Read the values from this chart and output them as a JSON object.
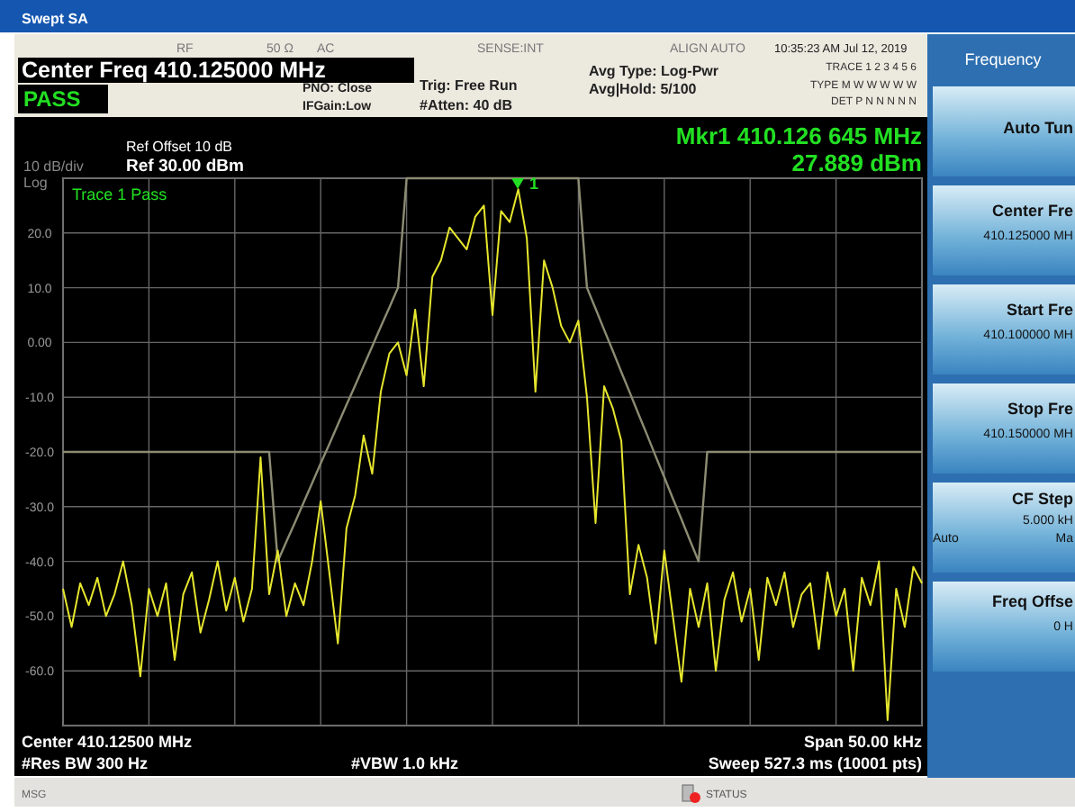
{
  "chart_data": {
    "type": "line",
    "title": "Swept SA",
    "categories": [
      null,
      null,
      null,
      null,
      null,
      null,
      null,
      null,
      null,
      null,
      null,
      null,
      null,
      null,
      null,
      null,
      null,
      null,
      null,
      null,
      null,
      null,
      null,
      null,
      null,
      null,
      null,
      null,
      null,
      null,
      null,
      null,
      null,
      null,
      null,
      null,
      null,
      null,
      null,
      null,
      null,
      null,
      null,
      null,
      null,
      null,
      null,
      null,
      null,
      null,
      null,
      null,
      null,
      null,
      null,
      null,
      null,
      null,
      null,
      null,
      null,
      null,
      null,
      null,
      null,
      null,
      null,
      null,
      null,
      null,
      null,
      null,
      null,
      null,
      null,
      null,
      null,
      null,
      null,
      null,
      null,
      null,
      null,
      null,
      null,
      null,
      null,
      null,
      null,
      null,
      null,
      null,
      null,
      null,
      null,
      null,
      null,
      null,
      null,
      null,
      null
    ],
    "series": [
      {
        "color": "#e6e62e",
        "values": [
          -45,
          -52,
          -44,
          -48,
          -43,
          -50,
          -46,
          -40,
          -48,
          -61,
          -45,
          -50,
          -44,
          -58,
          -46,
          -42,
          -53,
          -47,
          -40,
          -49,
          -43,
          -51,
          -45,
          -21,
          -46,
          -38,
          -50,
          -44,
          -48,
          -40,
          -29,
          -42,
          -55,
          -34,
          -28,
          -17,
          -24,
          -9,
          -2,
          0,
          -6,
          6,
          -8,
          12,
          15,
          21,
          19,
          17,
          23,
          25,
          5,
          24,
          22,
          28,
          19,
          -9,
          15,
          10,
          3,
          0,
          4,
          -10,
          -33,
          -8,
          -12,
          -18,
          -46,
          -37,
          -43,
          -55,
          -38,
          -50,
          -62,
          -45,
          -52,
          -44,
          -60,
          -47,
          -42,
          -51,
          -45,
          -58,
          -43,
          -48,
          -42,
          -52,
          -46,
          -44,
          -56,
          -42,
          -50,
          -45,
          -60,
          -43,
          -48,
          -40,
          -69,
          -45,
          -52,
          -41,
          -44
        ]
      },
      {
        "color": "#8c8c74",
        "values": [
          -20,
          -20,
          -20,
          -20,
          -20,
          -20,
          -20,
          -20,
          -20,
          -20,
          -20,
          -20,
          -20,
          -20,
          -20,
          -20,
          -20,
          -20,
          -20,
          -20,
          -20,
          -20,
          -20,
          -20,
          -20,
          -40,
          -36.4,
          -32.9,
          -29.3,
          -25.7,
          -22.1,
          -18.6,
          -15,
          -11.4,
          -7.9,
          -4.3,
          -0.7,
          2.9,
          6.4,
          10,
          30,
          30,
          30,
          30,
          30,
          30,
          30,
          30,
          30,
          30,
          30,
          30,
          30,
          30,
          30,
          30,
          30,
          30,
          30,
          30,
          30,
          10,
          6.2,
          2.3,
          -1.5,
          -5.4,
          -9.2,
          -13.1,
          -16.9,
          -20.8,
          -24.6,
          -28.5,
          -32.3,
          -36.2,
          -40,
          -20,
          -20,
          -20,
          -20,
          -20,
          -20,
          -20,
          -20,
          -20,
          -20,
          -20,
          -20,
          -20,
          -20,
          -20,
          -20,
          -20,
          -20,
          -20,
          -20,
          -20,
          -20,
          -20,
          -20,
          -20,
          -20
        ]
      }
    ],
    "ylim": [
      -70,
      30
    ],
    "yticks": [
      {
        "value": -70,
        "label": null
      },
      {
        "value": -60,
        "label": "-60.0"
      },
      {
        "value": -50,
        "label": "-50.0"
      },
      {
        "value": -40,
        "label": "-40.0"
      },
      {
        "value": -30,
        "label": "-30.0"
      },
      {
        "value": -20,
        "label": "-20.0"
      },
      {
        "value": -10,
        "label": "-10.0"
      },
      {
        "value": 0,
        "label": "0.00"
      },
      {
        "value": 10,
        "label": "10.0"
      },
      {
        "value": 20,
        "label": "20.0"
      },
      {
        "value": 30,
        "label": null
      }
    ],
    "grid": true,
    "tick_labels": "y",
    "annotations": [
      "1",
      "RF",
      "50 Ω",
      "AC",
      "SENSE:INT",
      "ALIGN AUTO",
      "10:35:23 AM Jul 12, 2019",
      "Center Freq 410.125000 MHz",
      "PASS",
      "PNO: Close",
      "IFGain:Low",
      "Trig: Free Run",
      "#Atten: 40 dB",
      "Avg Type: Log-Pwr",
      "Avg|Hold: 5/100",
      "TRACE 1 2 3 4 5 6",
      "TYPE M W W W W W",
      "DET P N N N N N",
      "Ref Offset 10 dB",
      "10 dB/div",
      "Ref 30.00 dBm",
      "Log",
      "Mkr1 410.126 645 MHz",
      "27.889 dBm",
      "Trace 1 Pass",
      "Center 410.12500 MHz",
      "Span 50.00 kHz",
      "#Res BW 300 Hz",
      "#VBW 1.0 kHz",
      "Sweep  527.3 ms (10001 pts)",
      "MSG",
      "STATUS",
      "Frequency",
      "Auto Tun",
      "Center Fre",
      "410.125000 MH",
      "Start Fre",
      "410.100000 MH",
      "Stop Fre",
      "410.150000 MH",
      "CF Step",
      "5.000 kH",
      "Auto",
      "Ma",
      "Freq Offse",
      "0 H"
    ]
  }
}
